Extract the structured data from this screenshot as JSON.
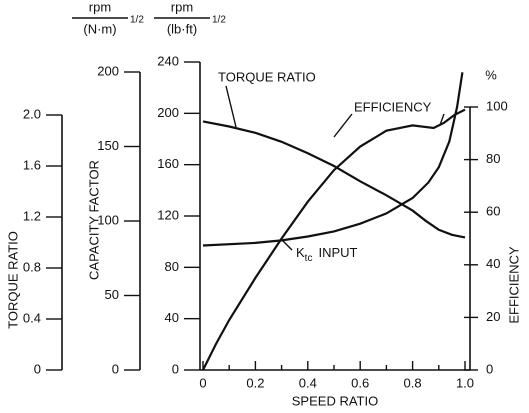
{
  "chart_data": {
    "type": "line",
    "xlabel": "SPEED RATIO",
    "xlim": [
      0,
      1
    ],
    "xticks": [
      0,
      0.2,
      0.4,
      0.6,
      0.8,
      {
        "value": 1,
        "label": "1.0"
      }
    ],
    "ylim": [
      0,
      240
    ],
    "yticks": [
      0,
      40,
      80,
      120,
      160,
      200,
      240
    ],
    "y2label": "EFFICIENCY",
    "y2unit": "%",
    "y2lim": [
      0,
      100
    ],
    "y2ticks": [
      0,
      20,
      40,
      60,
      80,
      100
    ],
    "y3label": "TORQUE RATIO",
    "y3lim": [
      0,
      2
    ],
    "y3ticks": [
      0,
      0.4,
      0.8,
      1.2,
      1.6,
      {
        "value": 2,
        "label": "2.0"
      }
    ],
    "y4label": "CAPACITY FACTOR",
    "y4lim": [
      0,
      200
    ],
    "y4ticks": [
      0,
      50,
      100,
      150,
      200
    ],
    "units": {
      "y4": {
        "top": "rpm",
        "bottom": "(N·m)",
        "power": "1/2"
      },
      "y": {
        "top": "rpm",
        "bottom": "(lb·ft)",
        "power": "1/2"
      }
    },
    "series": [
      {
        "name": "TORQUE RATIO",
        "color": "#111111",
        "axis": "y3",
        "x": [
          0,
          0.1,
          0.2,
          0.3,
          0.4,
          0.5,
          0.6,
          0.7,
          0.8,
          0.85,
          0.9,
          0.95,
          1.0
        ],
        "values": [
          1.95,
          1.91,
          1.86,
          1.79,
          1.7,
          1.6,
          1.48,
          1.37,
          1.25,
          1.17,
          1.1,
          1.06,
          1.04
        ]
      },
      {
        "name": "EFFICIENCY",
        "color": "#111111",
        "axis": "y2",
        "x": [
          0,
          0.05,
          0.1,
          0.2,
          0.3,
          0.4,
          0.5,
          0.6,
          0.7,
          0.8,
          0.88,
          0.92,
          0.96,
          1.0
        ],
        "values": [
          0,
          10,
          19,
          35,
          50,
          64,
          76,
          85,
          91,
          93,
          92,
          94,
          97,
          99
        ]
      },
      {
        "name": "INPUT",
        "name_main": "K",
        "name_sub": "tc",
        "color": "#111111",
        "axis": "y",
        "x": [
          0,
          0.2,
          0.3,
          0.4,
          0.5,
          0.6,
          0.7,
          0.8,
          0.86,
          0.9,
          0.94,
          0.97,
          0.99
        ],
        "values": [
          97,
          99,
          101,
          104,
          108,
          114,
          122,
          134,
          146,
          158,
          178,
          205,
          232
        ]
      }
    ]
  }
}
